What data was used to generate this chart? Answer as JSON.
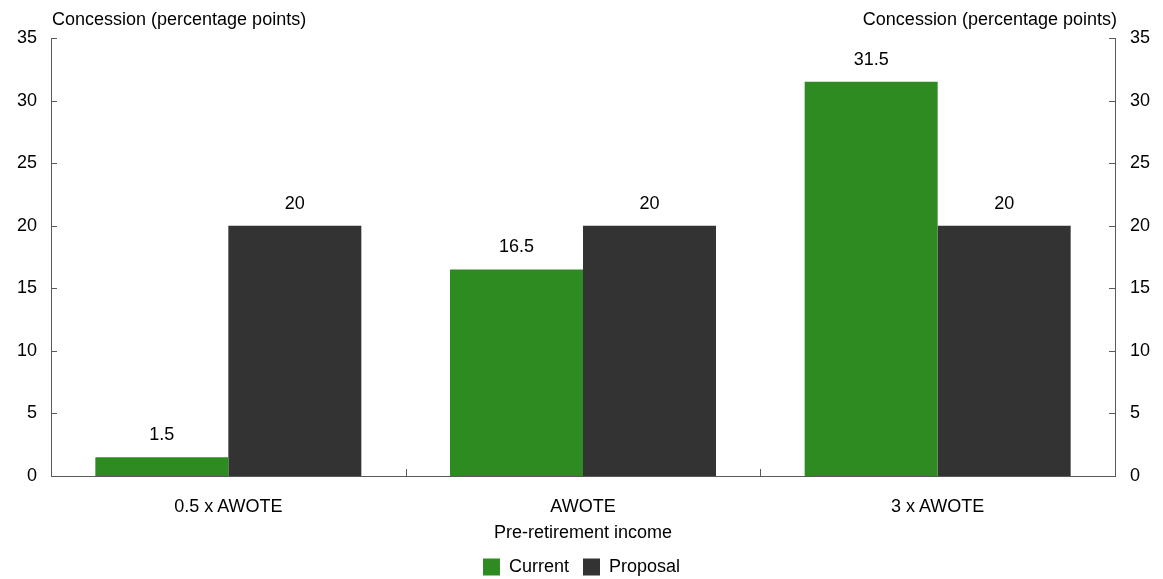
{
  "chart_data": {
    "type": "bar",
    "categories": [
      "0.5 x AWOTE",
      "AWOTE",
      "3 x AWOTE"
    ],
    "xlabel": "Pre-retirement income",
    "ylabel": "Concession (percentage points)",
    "y2label": "Concession (percentage points)",
    "series": [
      {
        "name": "Current",
        "color": "#2e8b21",
        "values": [
          1.5,
          16.5,
          31.5
        ]
      },
      {
        "name": "Proposal",
        "color": "#333333",
        "values": [
          20,
          20,
          20
        ]
      }
    ],
    "ylim": [
      0,
      35
    ],
    "yticks": [
      0,
      5,
      10,
      15,
      20,
      25,
      30,
      35
    ],
    "y2lim": [
      0,
      35
    ],
    "y2ticks": [
      0,
      5,
      10,
      15,
      20,
      25,
      30,
      35
    ],
    "data_labels": true,
    "legend": "bottom"
  }
}
